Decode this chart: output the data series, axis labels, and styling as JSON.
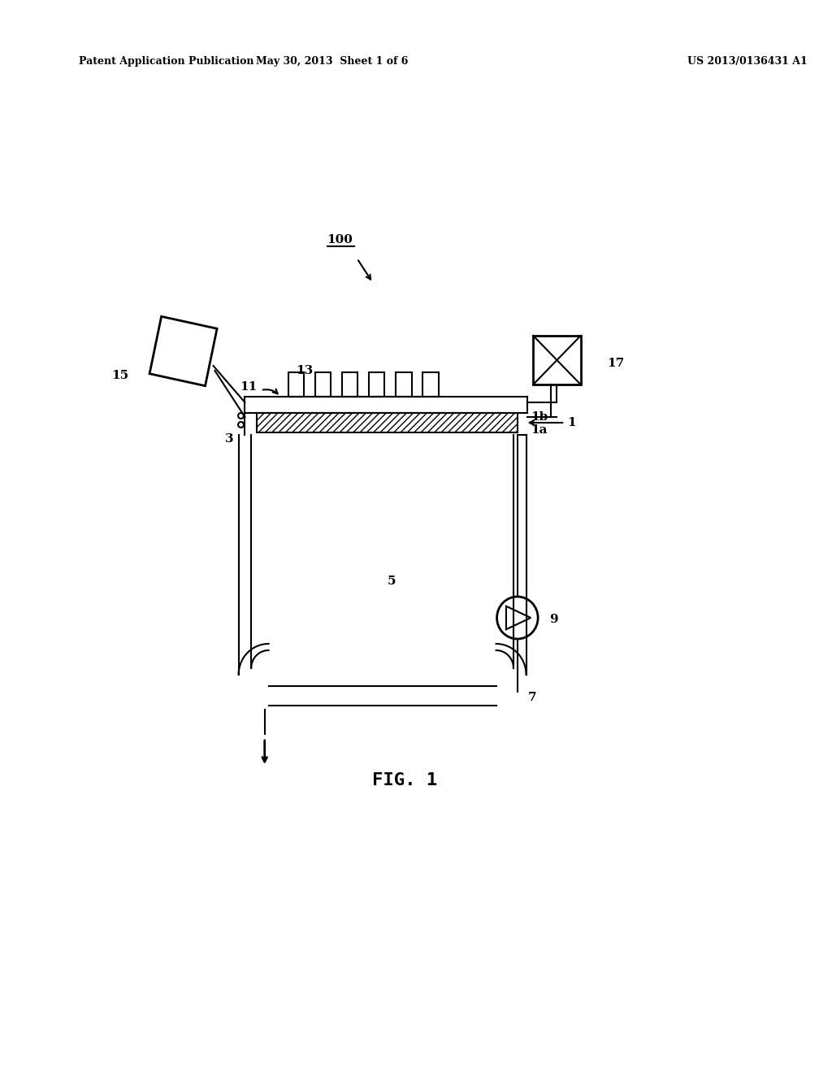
{
  "bg_color": "#ffffff",
  "line_color": "#000000",
  "header_left": "Patent Application Publication",
  "header_mid": "May 30, 2013  Sheet 1 of 6",
  "header_right": "US 2013/0136431 A1",
  "fig_label": "FIG. 1",
  "label_100": "100",
  "label_15": "15",
  "label_17": "17",
  "label_11": "11",
  "label_13": "13",
  "label_1": "1",
  "label_1a": "1a",
  "label_1b": "1b",
  "label_3": "3",
  "label_5": "5",
  "label_7": "7",
  "label_9": "9"
}
